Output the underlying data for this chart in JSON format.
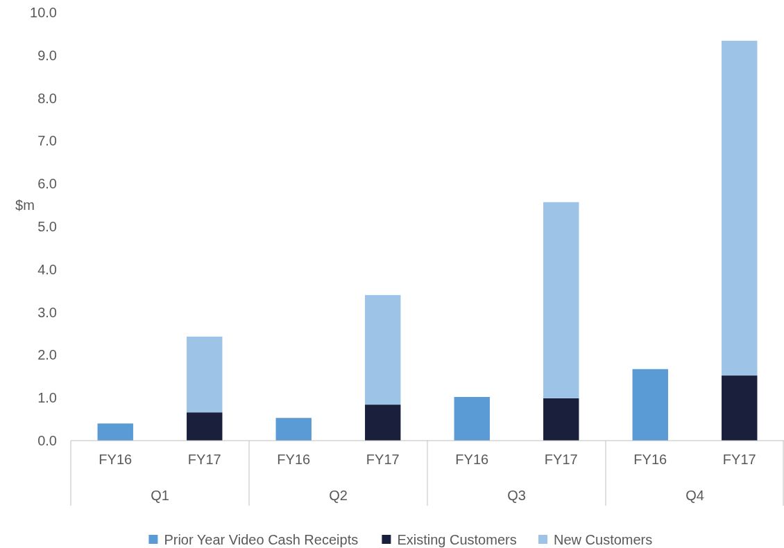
{
  "chart_data": {
    "type": "bar",
    "stacked": true,
    "ylabel": "$m",
    "categories": [
      "FY16",
      "FY17",
      "FY16",
      "FY17",
      "FY16",
      "FY17",
      "FY16",
      "FY17"
    ],
    "annotations": [
      "Q1",
      "Q2",
      "Q3",
      "Q4"
    ],
    "series": [
      {
        "name": "Prior Year Video Cash Receipts",
        "color": "#5b9bd5",
        "values": [
          0.4,
          null,
          0.53,
          null,
          1.02,
          null,
          1.67,
          null
        ]
      },
      {
        "name": "Existing Customers",
        "color": "#1a1f3c",
        "values": [
          null,
          0.66,
          null,
          0.84,
          null,
          0.99,
          null,
          1.52
        ]
      },
      {
        "name": "New Customers",
        "color": "#9dc3e6",
        "values": [
          null,
          1.77,
          null,
          2.56,
          null,
          4.58,
          null,
          7.82
        ]
      }
    ],
    "ylim": [
      0,
      10
    ],
    "yticks": [
      {
        "value": 0,
        "label": "0.0"
      },
      {
        "value": 1,
        "label": "1.0"
      },
      {
        "value": 2,
        "label": "2.0"
      },
      {
        "value": 3,
        "label": "3.0"
      },
      {
        "value": 4,
        "label": "4.0"
      },
      {
        "value": 5,
        "label": "5.0"
      },
      {
        "value": 6,
        "label": "6.0"
      },
      {
        "value": 7,
        "label": "7.0"
      },
      {
        "value": 8,
        "label": "8.0"
      },
      {
        "value": 9,
        "label": "9.0"
      },
      {
        "value": 10,
        "label": "10.0"
      }
    ],
    "grid": false,
    "legend": "bottom"
  }
}
